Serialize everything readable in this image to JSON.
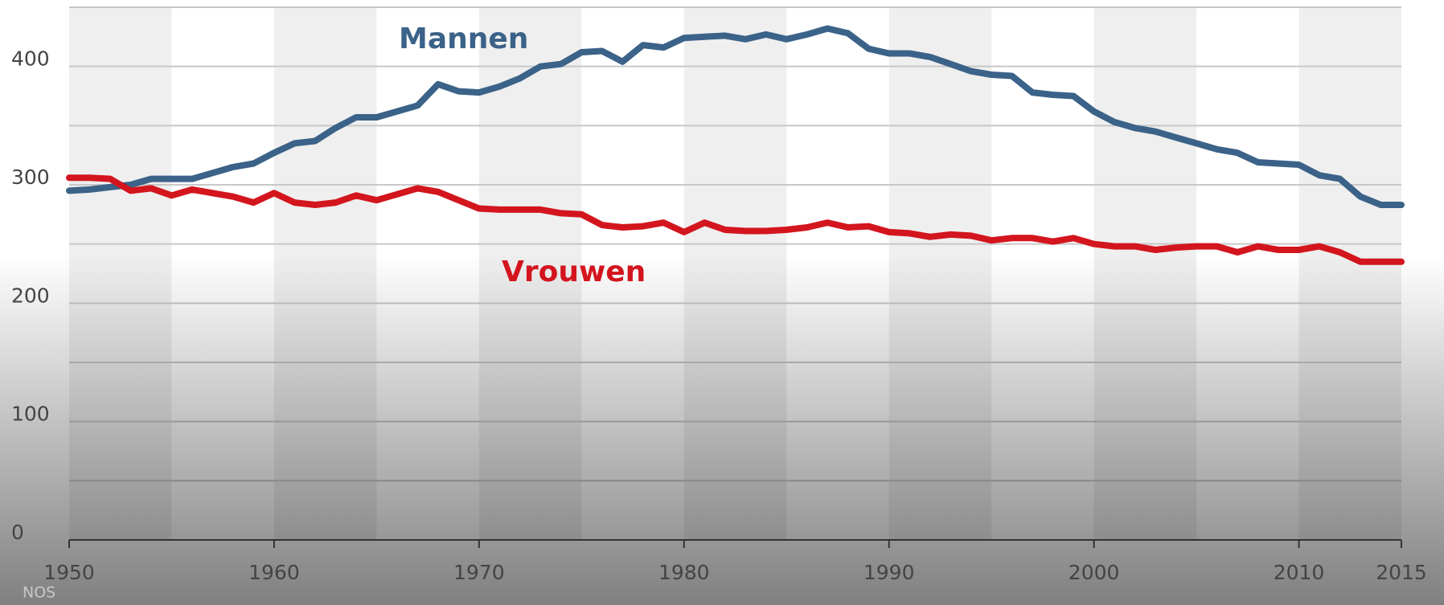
{
  "chart_data": {
    "type": "line",
    "x": [
      1950,
      1951,
      1952,
      1953,
      1954,
      1955,
      1956,
      1957,
      1958,
      1959,
      1960,
      1961,
      1962,
      1963,
      1964,
      1965,
      1966,
      1967,
      1968,
      1969,
      1970,
      1971,
      1972,
      1973,
      1974,
      1975,
      1976,
      1977,
      1978,
      1979,
      1980,
      1981,
      1982,
      1983,
      1984,
      1985,
      1986,
      1987,
      1988,
      1989,
      1990,
      1991,
      1992,
      1993,
      1994,
      1995,
      1996,
      1997,
      1998,
      1999,
      2000,
      2001,
      2002,
      2003,
      2004,
      2005,
      2006,
      2007,
      2008,
      2009,
      2010,
      2011,
      2012,
      2013,
      2014,
      2015
    ],
    "series": [
      {
        "name": "Mannen",
        "color": "#3b6288",
        "values": [
          295,
          296,
          298,
          300,
          305,
          305,
          305,
          310,
          315,
          318,
          327,
          335,
          337,
          348,
          357,
          357,
          362,
          367,
          385,
          379,
          378,
          383,
          390,
          400,
          402,
          412,
          413,
          404,
          418,
          416,
          424,
          425,
          426,
          423,
          427,
          423,
          427,
          432,
          428,
          415,
          411,
          411,
          408,
          402,
          396,
          393,
          392,
          378,
          376,
          375,
          362,
          353,
          348,
          345,
          340,
          335,
          330,
          327,
          319,
          318,
          317,
          308,
          305,
          290,
          283,
          283
        ]
      },
      {
        "name": "Vrouwen",
        "color": "#d3151e",
        "values": [
          306,
          306,
          305,
          295,
          297,
          291,
          296,
          293,
          290,
          285,
          293,
          285,
          283,
          285,
          291,
          287,
          292,
          297,
          294,
          287,
          280,
          279,
          279,
          279,
          276,
          275,
          266,
          264,
          265,
          268,
          260,
          268,
          262,
          261,
          261,
          262,
          264,
          268,
          264,
          265,
          260,
          259,
          256,
          258,
          257,
          253,
          255,
          255,
          252,
          255,
          250,
          248,
          248,
          245,
          247,
          248,
          248,
          243,
          248,
          245,
          245,
          248,
          243,
          235,
          235,
          235
        ]
      }
    ],
    "xlim": [
      1950,
      2015
    ],
    "xticks": [
      1950,
      1960,
      1970,
      1980,
      1990,
      2000,
      2010,
      2015
    ],
    "ylim": [
      0,
      450
    ],
    "yticks": [
      0,
      100,
      200,
      300,
      400
    ],
    "minor_yticks": [
      50,
      150,
      250,
      350,
      450
    ],
    "grid": true,
    "source": "NOS"
  }
}
